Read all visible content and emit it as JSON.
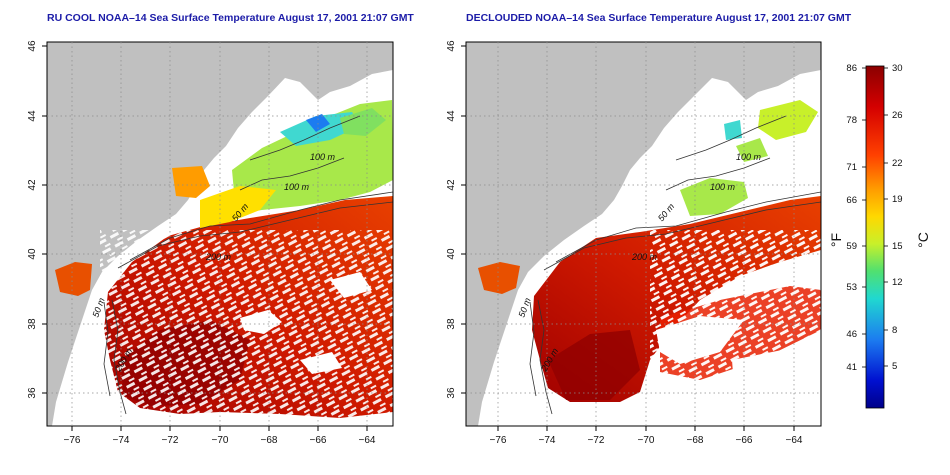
{
  "panels": [
    {
      "title": "RU COOL NOAA–14 Sea Surface Temperature August 17, 2001 21:07 GMT",
      "product": "cloudy"
    },
    {
      "title": "DECLOUDED NOAA–14 Sea Surface Temperature August 17, 2001 21:07 GMT",
      "product": "declouded"
    }
  ],
  "map": {
    "lon_ticks": [
      "−76",
      "−74",
      "−72",
      "−70",
      "−68",
      "−66",
      "−64"
    ],
    "lat_ticks": [
      "46",
      "44",
      "42",
      "40",
      "38",
      "36"
    ],
    "contour_labels": [
      "100 m",
      "100 m",
      "50 m",
      "200 m",
      "50 m",
      "200 m"
    ],
    "land_color": "#c0c0c0",
    "gridline_style": "dotted"
  },
  "colorbar": {
    "fahrenheit_ticks": [
      "86",
      "78",
      "71",
      "66",
      "59",
      "53",
      "46",
      "41"
    ],
    "celsius_ticks": [
      "30",
      "26",
      "22",
      "19",
      "15",
      "12",
      "8",
      "5"
    ],
    "fahrenheit_unit": "°F",
    "celsius_unit": "°C",
    "colors": [
      "#8b0000",
      "#d40000",
      "#ff4000",
      "#ff9c00",
      "#ffd800",
      "#c8f02a",
      "#50e070",
      "#20d8d0",
      "#1c7cf0",
      "#0010d0",
      "#00008a"
    ]
  }
}
